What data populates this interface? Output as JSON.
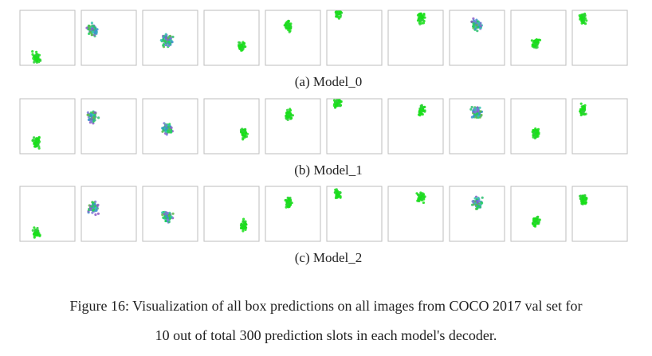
{
  "panels": [
    {
      "caption": "(a) Model_0"
    },
    {
      "caption": "(b) Model_1"
    },
    {
      "caption": "(c) Model_2"
    }
  ],
  "figure_caption": {
    "lines": [
      "Figure 16: Visualization of all box predictions on all images from COCO 2017 val set for",
      "10 out of total 300 prediction slots in each model's decoder."
    ]
  }
}
